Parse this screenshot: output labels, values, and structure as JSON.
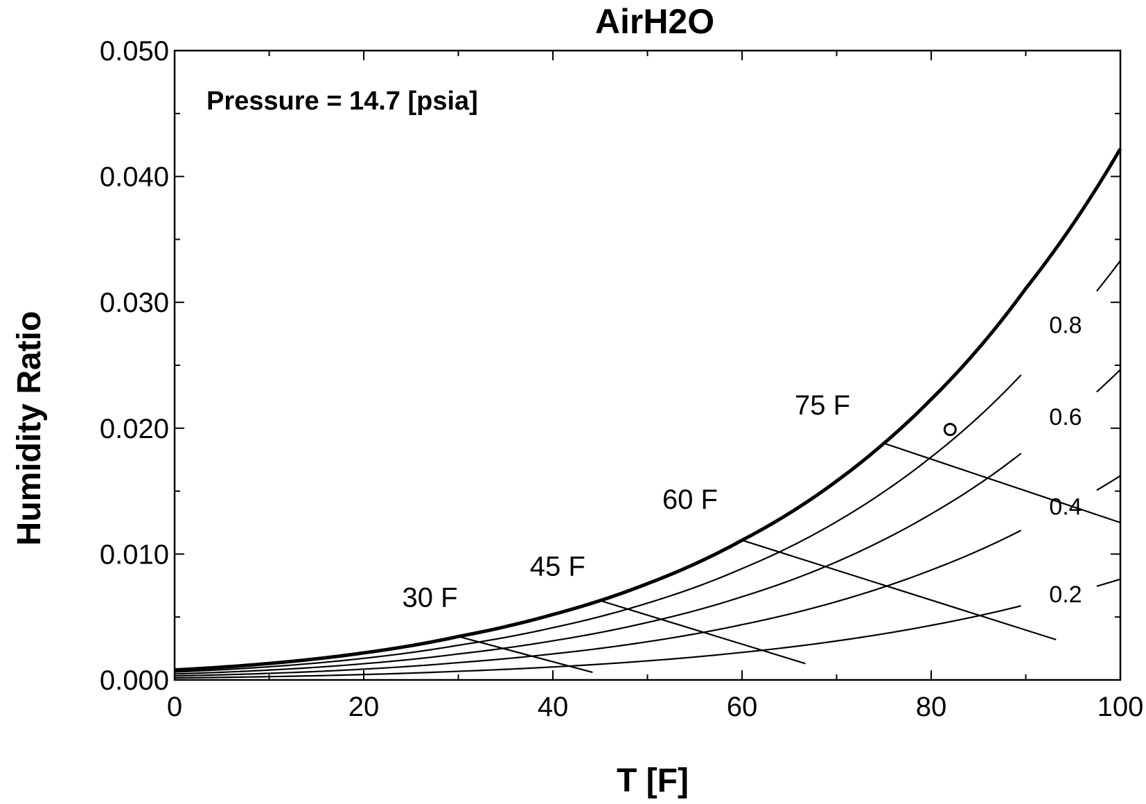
{
  "chart_data": {
    "type": "line",
    "title": "AirH2O",
    "xlabel": "T [F]",
    "ylabel": "Humidity Ratio",
    "annotation": "Pressure = 14.7 [psia]",
    "xlim": [
      0,
      100
    ],
    "ylim": [
      0,
      0.05
    ],
    "x_ticks": [
      {
        "value": 0,
        "label": "0"
      },
      {
        "value": 20,
        "label": "20"
      },
      {
        "value": 40,
        "label": "40"
      },
      {
        "value": 60,
        "label": "60"
      },
      {
        "value": 80,
        "label": "80"
      },
      {
        "value": 100,
        "label": "100"
      }
    ],
    "y_ticks": [
      {
        "value": 0,
        "label": "0.000"
      },
      {
        "value": 0.01,
        "label": "0.010"
      },
      {
        "value": 0.02,
        "label": "0.020"
      },
      {
        "value": 0.03,
        "label": "0.030"
      },
      {
        "value": 0.04,
        "label": "0.040"
      },
      {
        "value": 0.05,
        "label": "0.050"
      }
    ],
    "x_minor_step": 10,
    "y_minor_step": 0.005,
    "saturation": {
      "name": "Saturation",
      "x": [
        0,
        10,
        20,
        30,
        40,
        50,
        60,
        70,
        75,
        80,
        90,
        100
      ],
      "values": [
        0.00079,
        0.00131,
        0.00215,
        0.00345,
        0.0052,
        0.00765,
        0.0111,
        0.0158,
        0.0188,
        0.0223,
        0.0311,
        0.0422
      ]
    },
    "relative_humidity": [
      {
        "name": "0.8",
        "label": "0.8",
        "rh": 0.8
      },
      {
        "name": "0.6",
        "label": "0.6",
        "rh": 0.6
      },
      {
        "name": "0.4",
        "label": "0.4",
        "rh": 0.4
      },
      {
        "name": "0.2",
        "label": "0.2",
        "rh": 0.2
      }
    ],
    "rh_label_x": 94.5,
    "wet_bulb": [
      {
        "name": "30 F",
        "label": "30 F",
        "x": [
          30,
          44.2
        ],
        "values": [
          0.00345,
          0.0006
        ],
        "label_at": [
          27,
          0.0058
        ]
      },
      {
        "name": "45 F",
        "label": "45 F",
        "x": [
          45,
          66.7
        ],
        "values": [
          0.0063,
          0.0013
        ],
        "label_at": [
          40.5,
          0.0083
        ]
      },
      {
        "name": "60 F",
        "label": "60 F",
        "x": [
          60,
          93.2
        ],
        "values": [
          0.0111,
          0.0032
        ],
        "label_at": [
          54.5,
          0.0136
        ]
      },
      {
        "name": "75 F",
        "label": "75 F",
        "x": [
          75,
          100
        ],
        "values": [
          0.0188,
          0.0125
        ],
        "label_at": [
          68.5,
          0.0211
        ]
      }
    ],
    "state_point": {
      "name": "State point",
      "x": 82,
      "y": 0.0199
    }
  }
}
